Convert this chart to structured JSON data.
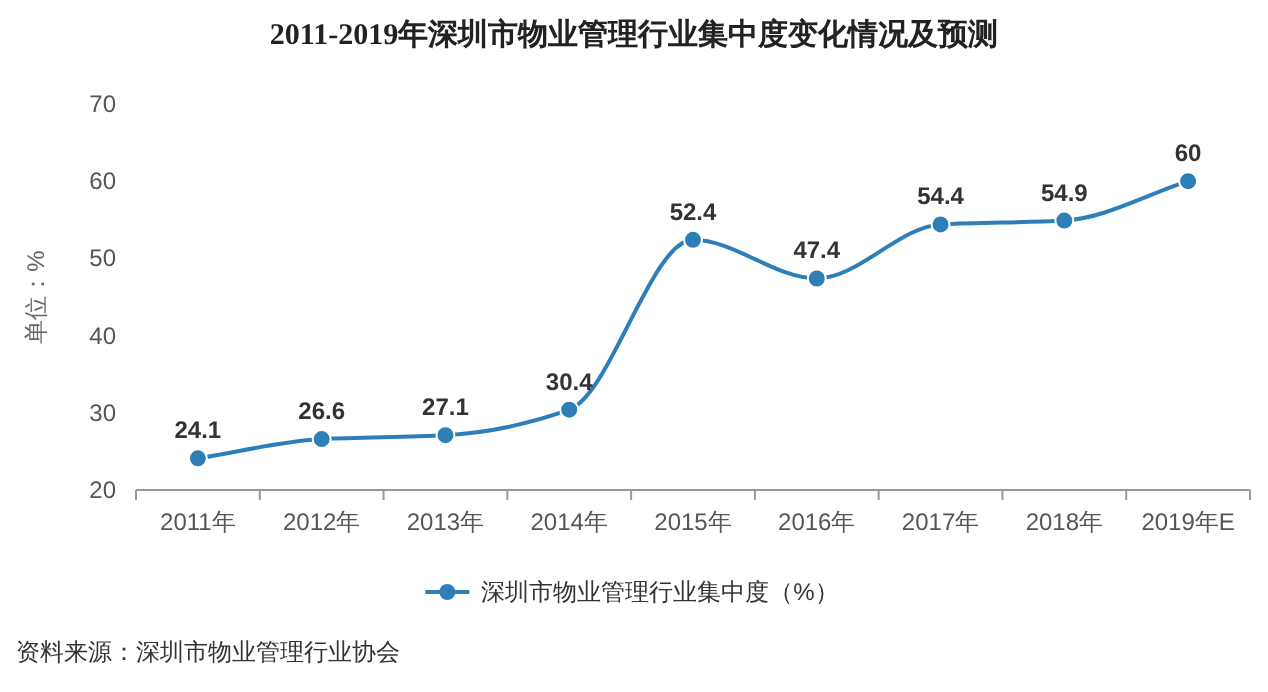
{
  "chart_data": {
    "type": "line",
    "title": "2011-2019年深圳市物业管理行业集中度变化情况及预测",
    "ylabel": "单位：%",
    "categories": [
      "2011年",
      "2012年",
      "2013年",
      "2014年",
      "2015年",
      "2016年",
      "2017年",
      "2018年",
      "2019年E"
    ],
    "series": [
      {
        "name": "深圳市物业管理行业集中度（%）",
        "color": "#2e7fb8",
        "values": [
          24.1,
          26.6,
          27.1,
          30.4,
          52.4,
          47.4,
          54.4,
          54.9,
          60
        ]
      }
    ],
    "ylim": [
      20,
      70
    ],
    "yticks": [
      20,
      30,
      40,
      50,
      60,
      70
    ],
    "grid": false,
    "legend": "bottom",
    "marker": "circle",
    "data_labels": true,
    "annotations": [
      "资料来源：深圳市物业管理行业协会"
    ]
  }
}
